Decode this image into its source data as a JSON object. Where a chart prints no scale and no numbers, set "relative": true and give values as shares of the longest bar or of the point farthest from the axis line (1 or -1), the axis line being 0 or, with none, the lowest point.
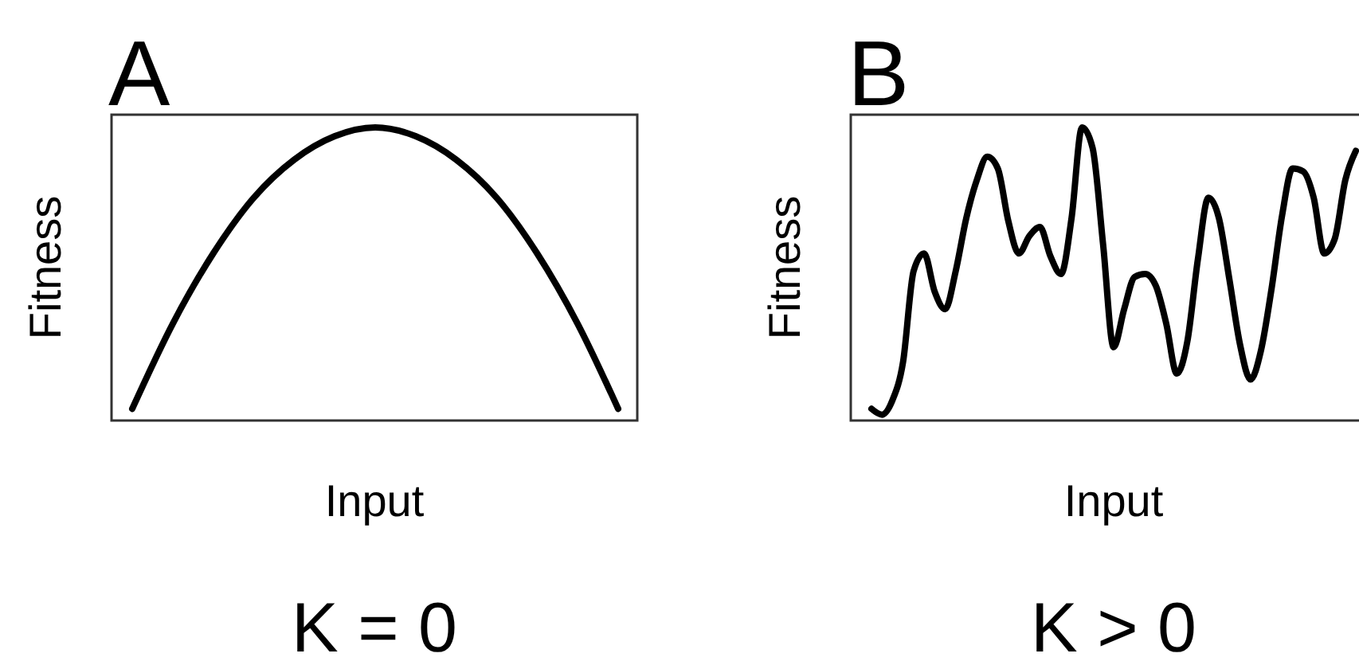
{
  "chart_data": [
    {
      "type": "line",
      "title": "A",
      "subtitle": "K = 0",
      "xlabel": "Input",
      "ylabel": "Fitness",
      "relative": true,
      "categories": [
        null,
        null,
        null,
        null,
        null,
        null,
        null,
        null,
        null,
        null,
        null,
        null,
        null
      ],
      "series": [
        {
          "color": "#000000",
          "values": [
            0.04,
            0.33,
            0.57,
            0.76,
            0.89,
            0.97,
            1.0,
            0.97,
            0.89,
            0.76,
            0.57,
            0.33,
            0.04
          ]
        }
      ]
    },
    {
      "type": "line",
      "title": "B",
      "subtitle": "K > 0",
      "xlabel": "Input",
      "ylabel": "Fitness",
      "relative": true,
      "categories": [
        null,
        null,
        null,
        null,
        null,
        null,
        null,
        null,
        null,
        null,
        null,
        null,
        null,
        null,
        null,
        null,
        null,
        null,
        null,
        null,
        null,
        null,
        null,
        null,
        null,
        null,
        null,
        null,
        null,
        null,
        null,
        null,
        null,
        null,
        null,
        null,
        null,
        null,
        null,
        null,
        null,
        null,
        null,
        null,
        null,
        null,
        null
      ],
      "series": [
        {
          "color": "#000000",
          "values": [
            0.04,
            0.02,
            0.07,
            0.2,
            0.51,
            0.57,
            0.44,
            0.38,
            0.51,
            0.69,
            0.82,
            0.9,
            0.86,
            0.68,
            0.57,
            0.63,
            0.66,
            0.56,
            0.5,
            0.69,
            1.0,
            0.93,
            0.6,
            0.25,
            0.38,
            0.49,
            0.5,
            0.46,
            0.33,
            0.16,
            0.27,
            0.55,
            0.76,
            0.69,
            0.48,
            0.26,
            0.14,
            0.24,
            0.45,
            0.7,
            0.86,
            0.85,
            0.76,
            0.57,
            0.62,
            0.82,
            0.92
          ]
        }
      ]
    }
  ]
}
